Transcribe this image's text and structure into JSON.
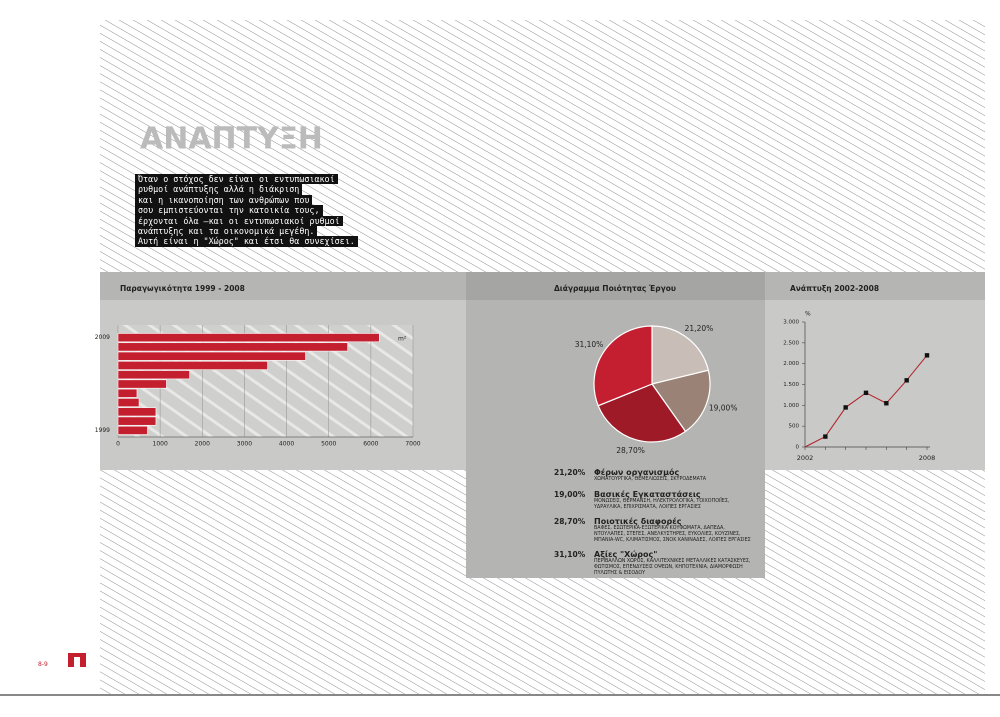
{
  "heading": "ΑΝΑΠΤΥΞΗ",
  "intro_lines": [
    "Όταν ο στόχος δεν είναι οι εντυπωσιακοί",
    "ρυθμοί ανάπτυξης αλλά η διάκριση",
    "και η ικανοποίηση των ανθρώπων που",
    "σου εμπιστεύονται την κατοικία τους,",
    "έρχονται όλα —και οι εντυπωσιακοί ρυθμοί",
    "ανάπτυξης και τα οικονομικά μεγέθη.",
    "Αυτή είναι η \"Χώρος\" και έτσι θα συνεχίσει."
  ],
  "page_number": "8-9",
  "chart_data": [
    {
      "type": "bar",
      "orientation": "horizontal",
      "title": "Παραγωγικότητα 1999 - 2008",
      "unit": "m²",
      "categories": [
        "2009",
        null,
        null,
        null,
        null,
        null,
        null,
        null,
        null,
        null,
        "1999"
      ],
      "values": [
        6200,
        5450,
        4450,
        3550,
        1700,
        1150,
        450,
        500,
        900,
        900,
        700
      ],
      "color": "#c41f2f",
      "xlim": [
        0,
        7000
      ],
      "xticks": [
        0,
        1000,
        2000,
        3000,
        4000,
        5000,
        6000,
        7000
      ],
      "grid": true
    },
    {
      "type": "pie",
      "title": "Διάγραμμα Ποιότητας Έργου",
      "categories": [
        "Φέρων οργανισμός",
        "Βασικές Εγκαταστάσεις",
        "Ποιοτικές διαφορές",
        "Αξίες \"Χώρος\""
      ],
      "descriptions": [
        "ΧΩΜΑΤΟΥΡΓΙΚΑ, ΘΕΜΕΛΙΩΣΕΙΣ, ΣΚΥΡΟΔΕΜΑΤΑ",
        "ΜΟΝΩΣΕΙΣ, ΘΕΡΜΑΝΣΗ, ΗΛΕΚΤΡΟΛΟΓΙΚΑ, ΤΟΙΧΟΠΟΙΪΕΣ, ΥΔΡΑΥΛΙΚΑ, ΕΠΙΧΡΙΣΜΑΤΑ, ΛΟΙΠΕΣ ΕΡΓΑΣΙΕΣ",
        "ΒΑΦΕΣ, ΕΣΩΤΕΡΙΚΑ-ΕΞΩΤΕΡΙΚΑ ΚΟΥΦΩΜΑΤΑ, ΔΑΠΕΔΑ, ΝΤΟΥΛΑΠΕΣ, ΣΤΕΓΕΣ, ΑΝΕΛΚΥΣΤΗΡΕΣ, ΕΥΚΟΛΙΕΣ, ΚΟΥΖΙΝΕΣ, ΜΠΑΝΙΑ-WC, ΚΛΙΜΑΤΙΣΜΟΣ, ΣΝΟΚ ΚΑΝΙΝΑΔΕΣ, ΛΟΙΠΕΣ ΕΡΓΑΣΙΕΣ",
        "ΠΕΡΙΒΑΛΛΩΝ ΧΩΡΟΣ, ΚΑΛΛΙΤΕΧΝΙΚΕΣ ΜΕΤΑΛΛΙΚΕΣ ΚΑΤΑΣΚΕΥΕΣ, ΦΩΤΙΣΜΟΣ, ΕΠΕΝΔΥΣΕΙΣ ΟΨΕΩΝ, ΚΗΠΟΤΕΧΝΙΑ, ΔΙΑΜΟΡΦΩΣΗ ΠΥΛΩΤΗΣ & ΕΙΣΟΔΟΥ"
      ],
      "values": [
        21.2,
        19.0,
        28.7,
        31.1
      ],
      "value_labels": [
        "21,20%",
        "19,00%",
        "28,70%",
        "31,10%"
      ],
      "colors": [
        "#c9bdb8",
        "#9a8276",
        "#9e1a27",
        "#c41f30"
      ]
    },
    {
      "type": "line",
      "title": "Ανάπτυξη 2002-2008",
      "y_label": "%",
      "categories": [
        "2002",
        null,
        null,
        null,
        null,
        null,
        "2008"
      ],
      "values": [
        0,
        250,
        950,
        1300,
        1050,
        1600,
        2200
      ],
      "color": "#b0202a",
      "marker_color": "#111",
      "ylim": [
        0,
        3000
      ],
      "yticks": [
        0,
        500,
        {
          "value": 1000,
          "label": "1.000"
        },
        {
          "value": 1500,
          "label": "1.500"
        },
        {
          "value": 2000,
          "label": "2.000"
        },
        {
          "value": 2500,
          "label": "2.500"
        },
        {
          "value": 3000,
          "label": "3.000"
        }
      ]
    }
  ]
}
